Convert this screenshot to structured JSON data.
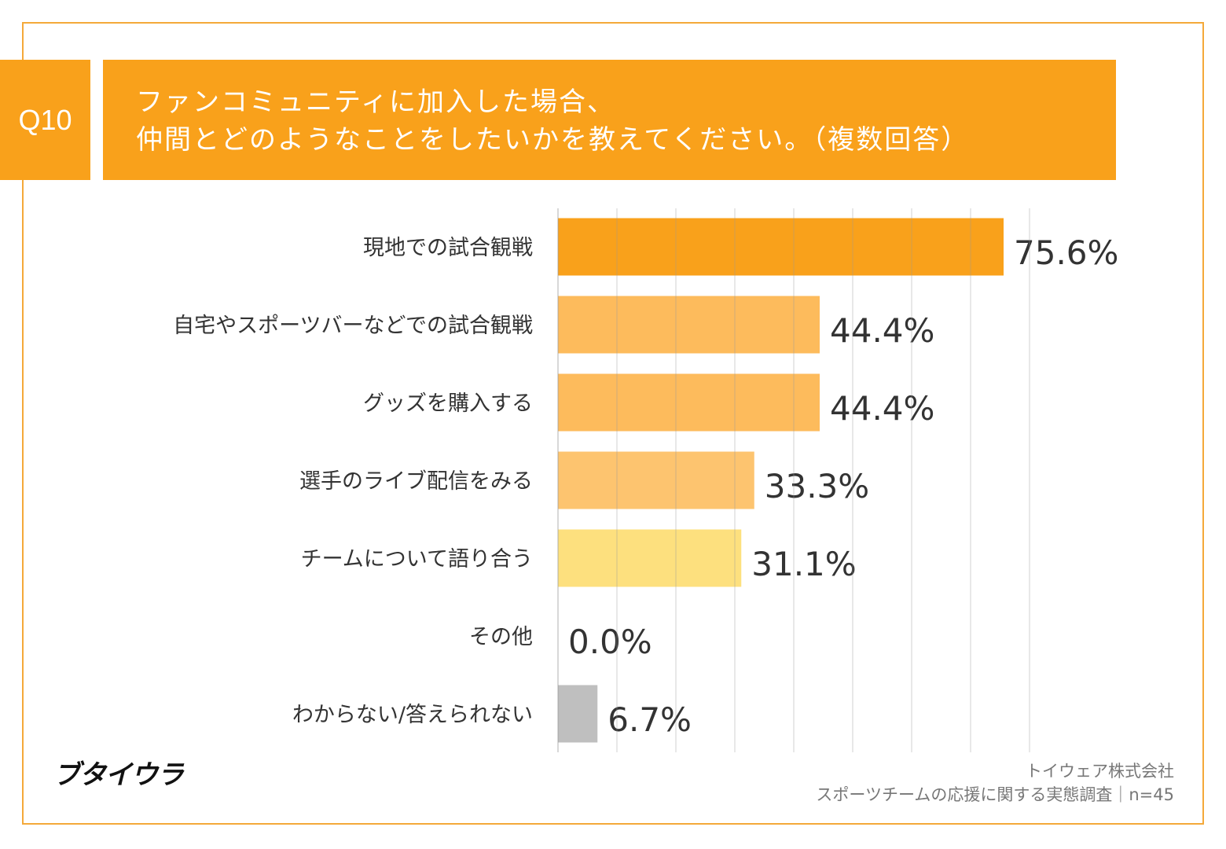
{
  "question_no": "Q10",
  "title_line1": "ファンコミュニティに加入した場合、",
  "title_line2": "仲間とどのようなことをしたいかを教えてください。（複数回答）",
  "logo": "ブタイウラ",
  "footer_company": "トイウェア株式会社",
  "footer_survey": "スポーツチームの応援に関する実態調査｜n=45",
  "chart_data": {
    "type": "bar",
    "orientation": "horizontal",
    "xlim": [
      0,
      80
    ],
    "grid": true,
    "categories": [
      "現地での試合観戦",
      "自宅やスポーツバーなどでの試合観戦",
      "グッズを購入する",
      "選手のライブ配信をみる",
      "チームについて語り合う",
      "その他",
      "わからない/答えられない"
    ],
    "values": [
      75.6,
      44.4,
      44.4,
      33.3,
      31.1,
      0.0,
      6.7
    ],
    "labels": [
      "75.6%",
      "44.4%",
      "44.4%",
      "33.3%",
      "31.1%",
      "0.0%",
      "6.7%"
    ],
    "colors": [
      "#f9a11b",
      "#fdbb5c",
      "#fdbb5c",
      "#fdc46f",
      "#fde07e",
      "#fde07e",
      "#bfbfbf"
    ]
  }
}
